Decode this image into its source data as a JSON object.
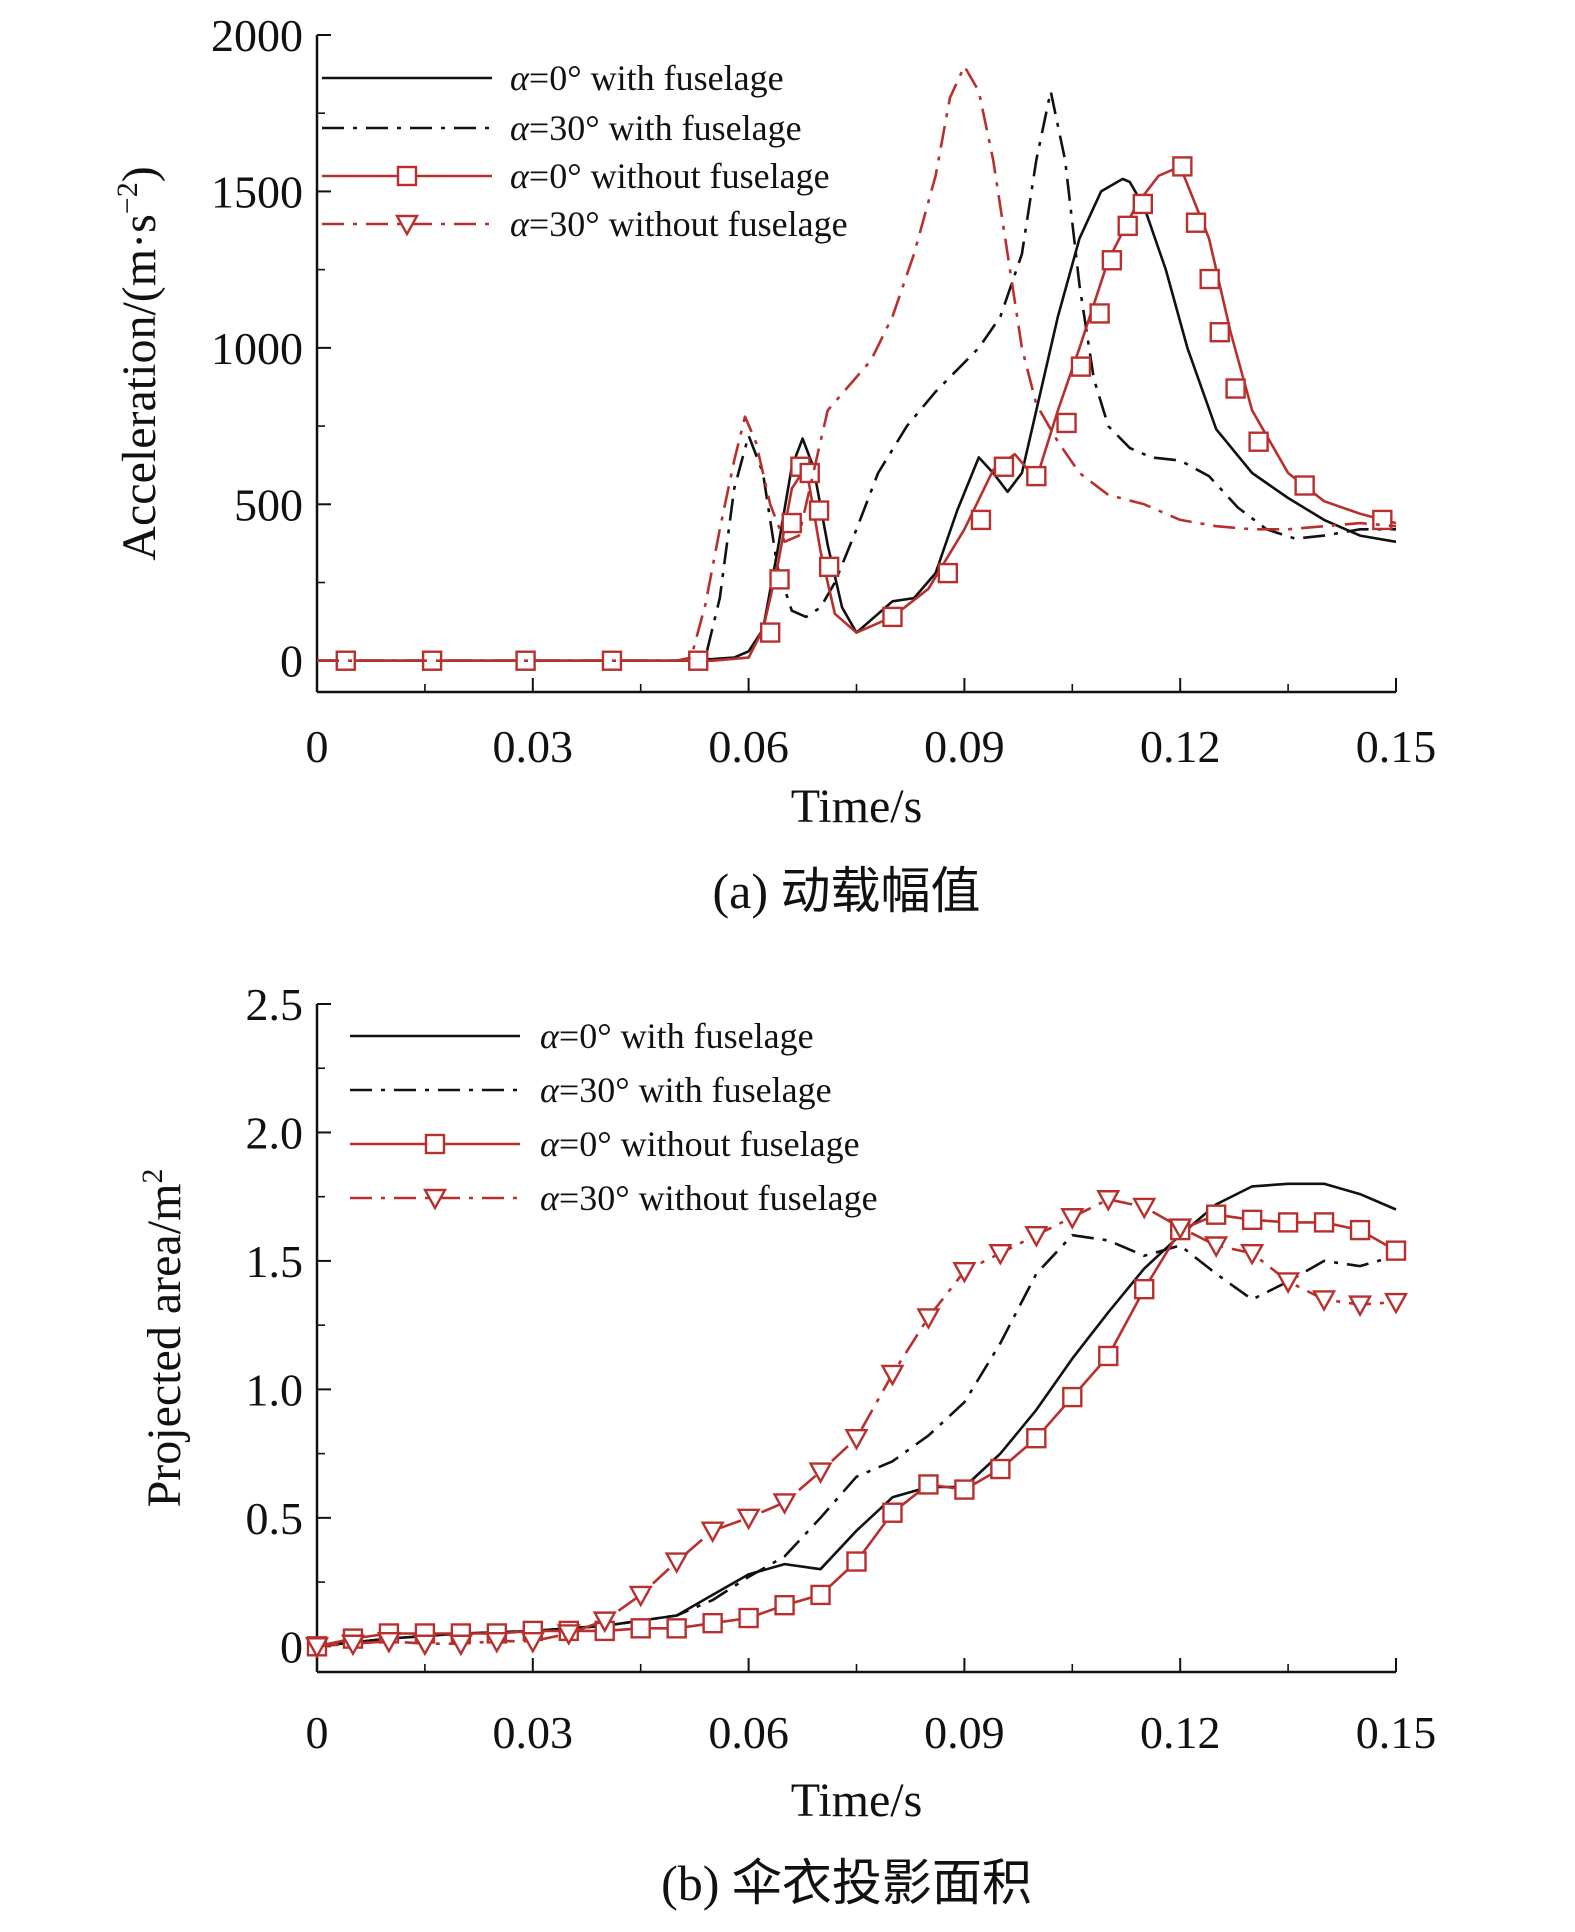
{
  "chart_data": [
    {
      "type": "line",
      "caption": "(a) 动载幅值",
      "xlabel": "Time/s",
      "ylabel": "Acceleration/(m·s",
      "ylabel_sup": "−2",
      "ylabel_close": ")",
      "xlim": [
        0,
        0.15
      ],
      "ylim": [
        -100,
        2000
      ],
      "xticks": [
        0,
        0.03,
        0.06,
        0.09,
        0.12,
        0.15
      ],
      "xtick_labels": [
        "0",
        "0.03",
        "0.06",
        "0.09",
        "0.12",
        "0.15"
      ],
      "yticks": [
        0,
        500,
        1000,
        1500,
        2000
      ],
      "ytick_labels": [
        "0",
        "500",
        "1000",
        "1500",
        "2000"
      ],
      "series": [
        {
          "name": "α=0° with fuselage",
          "name_alpha": "α",
          "name_rest": "=0° with fuselage",
          "color": "#111111",
          "dash": "solid",
          "marker": "none",
          "x": [
            0,
            0.01,
            0.02,
            0.03,
            0.04,
            0.05,
            0.055,
            0.058,
            0.06,
            0.062,
            0.064,
            0.066,
            0.0675,
            0.069,
            0.071,
            0.073,
            0.075,
            0.078,
            0.08,
            0.083,
            0.086,
            0.089,
            0.092,
            0.094,
            0.096,
            0.098,
            0.1,
            0.103,
            0.106,
            0.109,
            0.112,
            0.113,
            0.115,
            0.118,
            0.121,
            0.125,
            0.13,
            0.135,
            0.14,
            0.145,
            0.15
          ],
          "y": [
            0,
            0,
            0,
            0,
            0,
            0,
            5,
            10,
            30,
            100,
            350,
            620,
            710,
            620,
            370,
            170,
            90,
            150,
            190,
            200,
            280,
            480,
            650,
            600,
            540,
            600,
            800,
            1100,
            1350,
            1500,
            1540,
            1530,
            1450,
            1250,
            1000,
            740,
            600,
            520,
            450,
            400,
            380
          ]
        },
        {
          "name": "α=30° with fuselage",
          "name_alpha": "α",
          "name_rest": "=30° with fuselage",
          "color": "#111111",
          "dash": "dashdot",
          "marker": "none",
          "x": [
            0,
            0.01,
            0.02,
            0.03,
            0.04,
            0.05,
            0.054,
            0.056,
            0.058,
            0.06,
            0.062,
            0.064,
            0.066,
            0.068,
            0.07,
            0.072,
            0.075,
            0.078,
            0.082,
            0.086,
            0.089,
            0.092,
            0.095,
            0.098,
            0.1,
            0.102,
            0.104,
            0.106,
            0.108,
            0.11,
            0.113,
            0.116,
            0.12,
            0.124,
            0.128,
            0.132,
            0.136,
            0.14,
            0.145,
            0.15
          ],
          "y": [
            0,
            0,
            0,
            0,
            0,
            0,
            10,
            200,
            550,
            720,
            600,
            300,
            160,
            140,
            170,
            250,
            420,
            600,
            750,
            860,
            930,
            1000,
            1100,
            1300,
            1600,
            1820,
            1600,
            1200,
            900,
            750,
            680,
            650,
            640,
            590,
            490,
            420,
            390,
            400,
            420,
            420
          ]
        },
        {
          "name": "α=0° without fuselage",
          "name_alpha": "α",
          "name_rest": "=0° without fuselage",
          "color": "#b8302e",
          "dash": "solid",
          "marker": "square",
          "x": [
            0,
            0.01,
            0.02,
            0.03,
            0.04,
            0.05,
            0.055,
            0.06,
            0.062,
            0.064,
            0.066,
            0.068,
            0.07,
            0.072,
            0.075,
            0.08,
            0.085,
            0.09,
            0.094,
            0.097,
            0.1,
            0.103,
            0.106,
            0.11,
            0.114,
            0.117,
            0.12,
            0.124,
            0.127,
            0.13,
            0.135,
            0.14,
            0.145,
            0.15
          ],
          "y": [
            0,
            0,
            0,
            0,
            0,
            0,
            0,
            10,
            100,
            300,
            550,
            620,
            350,
            150,
            90,
            140,
            230,
            420,
            610,
            660,
            580,
            800,
            1000,
            1280,
            1460,
            1550,
            1580,
            1350,
            1050,
            800,
            600,
            510,
            470,
            440
          ],
          "marker_x": [
            0.004,
            0.016,
            0.029,
            0.041,
            0.053,
            0.063,
            0.0643,
            0.066,
            0.0672,
            0.0685,
            0.0698,
            0.0712,
            0.08,
            0.0877,
            0.0923,
            0.0955,
            0.1,
            0.1042,
            0.1062,
            0.1088,
            0.1105,
            0.1127,
            0.1148,
            0.1203,
            0.1222,
            0.1241,
            0.1255,
            0.1277,
            0.1309,
            0.1373,
            0.1481
          ],
          "marker_y": [
            0,
            0,
            0,
            0,
            0,
            90,
            260,
            440,
            620,
            600,
            480,
            300,
            140,
            280,
            450,
            620,
            590,
            760,
            940,
            1110,
            1280,
            1390,
            1460,
            1580,
            1400,
            1220,
            1050,
            870,
            700,
            560,
            450
          ]
        },
        {
          "name": "α=30° without fuselage",
          "name_alpha": "α",
          "name_rest": "=30° without fuselage",
          "color": "#b8302e",
          "dash": "dashdot",
          "marker": "triangle",
          "x": [
            0,
            0.01,
            0.02,
            0.03,
            0.04,
            0.05,
            0.052,
            0.054,
            0.056,
            0.058,
            0.0595,
            0.061,
            0.063,
            0.065,
            0.067,
            0.069,
            0.071,
            0.074,
            0.077,
            0.08,
            0.083,
            0.086,
            0.088,
            0.09,
            0.092,
            0.094,
            0.096,
            0.098,
            0.1,
            0.103,
            0.106,
            0.11,
            0.115,
            0.12,
            0.125,
            0.13,
            0.135,
            0.14,
            0.145,
            0.15
          ],
          "y": [
            0,
            0,
            0,
            0,
            0,
            0,
            10,
            180,
            420,
            640,
            780,
            700,
            500,
            380,
            400,
            600,
            800,
            880,
            960,
            1100,
            1300,
            1550,
            1800,
            1900,
            1820,
            1600,
            1300,
            1000,
            820,
            700,
            600,
            530,
            500,
            450,
            430,
            420,
            420,
            430,
            440,
            430
          ]
        }
      ]
    },
    {
      "type": "line",
      "caption": "(b) 伞衣投影面积",
      "xlabel": "Time/s",
      "ylabel": "Projected area/m",
      "ylabel_sup": "2",
      "ylabel_close": "",
      "xlim": [
        0,
        0.15
      ],
      "ylim": [
        -0.1,
        2.5
      ],
      "xticks": [
        0,
        0.03,
        0.06,
        0.09,
        0.12,
        0.15
      ],
      "xtick_labels": [
        "0",
        "0.03",
        "0.06",
        "0.09",
        "0.12",
        "0.15"
      ],
      "yticks": [
        0,
        0.5,
        1.0,
        1.5,
        2.0,
        2.5
      ],
      "ytick_labels": [
        "0",
        "0.5",
        "1.0",
        "1.5",
        "2.0",
        "2.5"
      ],
      "series": [
        {
          "name": "α=0° with fuselage",
          "name_alpha": "α",
          "name_rest": "=0° with fuselage",
          "color": "#111111",
          "dash": "solid",
          "marker": "none",
          "x": [
            0,
            0.01,
            0.02,
            0.03,
            0.04,
            0.05,
            0.055,
            0.06,
            0.065,
            0.07,
            0.075,
            0.08,
            0.085,
            0.09,
            0.095,
            0.1,
            0.105,
            0.11,
            0.115,
            0.12,
            0.125,
            0.13,
            0.135,
            0.14,
            0.145,
            0.15
          ],
          "y": [
            0,
            0.03,
            0.05,
            0.06,
            0.08,
            0.12,
            0.2,
            0.28,
            0.32,
            0.3,
            0.45,
            0.58,
            0.62,
            0.62,
            0.75,
            0.92,
            1.12,
            1.3,
            1.47,
            1.6,
            1.72,
            1.79,
            1.8,
            1.8,
            1.76,
            1.7
          ]
        },
        {
          "name": "α=30° with fuselage",
          "name_alpha": "α",
          "name_rest": "=30° with fuselage",
          "color": "#111111",
          "dash": "dashdot",
          "marker": "none",
          "x": [
            0,
            0.01,
            0.02,
            0.03,
            0.04,
            0.05,
            0.055,
            0.06,
            0.065,
            0.07,
            0.075,
            0.08,
            0.085,
            0.09,
            0.095,
            0.1,
            0.105,
            0.11,
            0.115,
            0.12,
            0.125,
            0.13,
            0.135,
            0.14,
            0.145,
            0.15
          ],
          "y": [
            0,
            0.03,
            0.05,
            0.06,
            0.08,
            0.12,
            0.18,
            0.27,
            0.35,
            0.5,
            0.66,
            0.72,
            0.82,
            0.95,
            1.18,
            1.45,
            1.6,
            1.58,
            1.52,
            1.56,
            1.45,
            1.35,
            1.42,
            1.5,
            1.48,
            1.52
          ]
        },
        {
          "name": "α=0° without fuselage",
          "name_alpha": "α",
          "name_rest": "=0° without fuselage",
          "color": "#b8302e",
          "dash": "solid",
          "marker": "square",
          "x": [
            0,
            0.005,
            0.01,
            0.015,
            0.02,
            0.025,
            0.03,
            0.035,
            0.04,
            0.045,
            0.05,
            0.055,
            0.06,
            0.065,
            0.07,
            0.075,
            0.08,
            0.085,
            0.09,
            0.095,
            0.1,
            0.105,
            0.11,
            0.115,
            0.12,
            0.125,
            0.13,
            0.135,
            0.14,
            0.145,
            0.15
          ],
          "y": [
            0.0,
            0.03,
            0.05,
            0.05,
            0.05,
            0.05,
            0.06,
            0.06,
            0.06,
            0.07,
            0.07,
            0.09,
            0.11,
            0.16,
            0.2,
            0.33,
            0.52,
            0.63,
            0.61,
            0.69,
            0.81,
            0.97,
            1.13,
            1.39,
            1.62,
            1.68,
            1.66,
            1.65,
            1.65,
            1.62,
            1.54
          ],
          "marker_x": [
            0,
            0.005,
            0.01,
            0.015,
            0.02,
            0.025,
            0.03,
            0.035,
            0.04,
            0.045,
            0.05,
            0.055,
            0.06,
            0.065,
            0.07,
            0.075,
            0.08,
            0.085,
            0.09,
            0.095,
            0.1,
            0.105,
            0.11,
            0.115,
            0.12,
            0.125,
            0.13,
            0.135,
            0.14,
            0.145,
            0.15
          ],
          "marker_y": [
            0.0,
            0.03,
            0.05,
            0.05,
            0.05,
            0.05,
            0.06,
            0.06,
            0.06,
            0.07,
            0.07,
            0.09,
            0.11,
            0.16,
            0.2,
            0.33,
            0.52,
            0.63,
            0.61,
            0.69,
            0.81,
            0.97,
            1.13,
            1.39,
            1.62,
            1.68,
            1.66,
            1.65,
            1.65,
            1.62,
            1.54
          ]
        },
        {
          "name": "α=30° without fuselage",
          "name_alpha": "α",
          "name_rest": "=30° without fuselage",
          "color": "#b8302e",
          "dash": "dashdot",
          "marker": "triangle",
          "x": [
            0,
            0.005,
            0.01,
            0.015,
            0.02,
            0.025,
            0.03,
            0.035,
            0.04,
            0.045,
            0.05,
            0.055,
            0.06,
            0.065,
            0.07,
            0.075,
            0.08,
            0.085,
            0.09,
            0.095,
            0.1,
            0.105,
            0.11,
            0.115,
            0.12,
            0.125,
            0.13,
            0.135,
            0.14,
            0.145,
            0.15
          ],
          "y": [
            0.0,
            0.01,
            0.02,
            0.01,
            0.01,
            0.02,
            0.02,
            0.05,
            0.1,
            0.2,
            0.33,
            0.45,
            0.5,
            0.56,
            0.68,
            0.81,
            1.06,
            1.28,
            1.46,
            1.53,
            1.6,
            1.67,
            1.74,
            1.71,
            1.63,
            1.56,
            1.53,
            1.42,
            1.35,
            1.33,
            1.34
          ],
          "marker_x": [
            0,
            0.005,
            0.01,
            0.015,
            0.02,
            0.025,
            0.03,
            0.035,
            0.04,
            0.045,
            0.05,
            0.055,
            0.06,
            0.065,
            0.07,
            0.075,
            0.08,
            0.085,
            0.09,
            0.095,
            0.1,
            0.105,
            0.11,
            0.115,
            0.12,
            0.125,
            0.13,
            0.135,
            0.14,
            0.145,
            0.15
          ],
          "marker_y": [
            0.0,
            0.01,
            0.02,
            0.01,
            0.01,
            0.02,
            0.02,
            0.05,
            0.1,
            0.2,
            0.33,
            0.45,
            0.5,
            0.56,
            0.68,
            0.81,
            1.06,
            1.28,
            1.46,
            1.53,
            1.6,
            1.67,
            1.74,
            1.71,
            1.63,
            1.56,
            1.53,
            1.42,
            1.35,
            1.33,
            1.34
          ]
        }
      ]
    }
  ]
}
